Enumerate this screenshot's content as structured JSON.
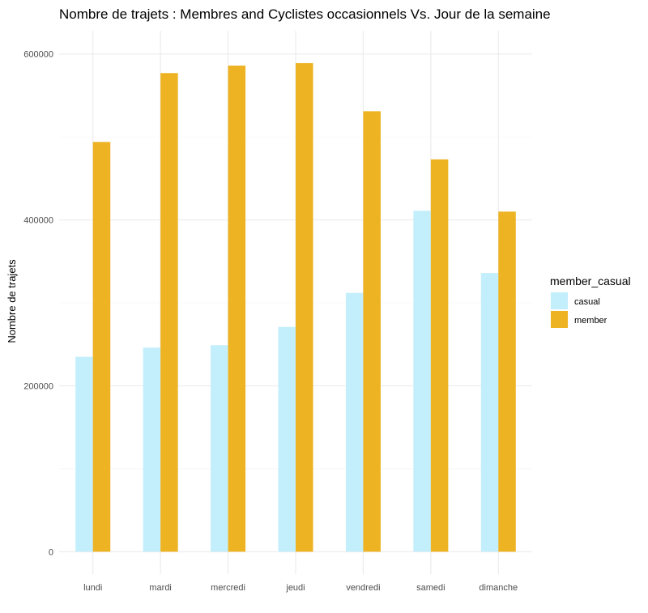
{
  "chart_data": {
    "type": "bar",
    "title": "Nombre de trajets : Membres and Cyclistes occasionnels Vs. Jour de la semaine",
    "xlabel": "",
    "ylabel": "Nombre de trajets",
    "categories": [
      "lundi",
      "mardi",
      "mercredi",
      "jeudi",
      "vendredi",
      "samedi",
      "dimanche"
    ],
    "series": [
      {
        "name": "casual",
        "color": "#c3eefb",
        "values": [
          235000,
          246000,
          249000,
          271000,
          312000,
          411000,
          336000
        ]
      },
      {
        "name": "member",
        "color": "#edb323",
        "values": [
          494000,
          577000,
          586000,
          589000,
          531000,
          473000,
          410000
        ]
      }
    ],
    "ylim": [
      -27000,
      628000
    ],
    "yticks": [
      0,
      200000,
      400000,
      600000
    ],
    "ytick_labels": [
      "0",
      "200000",
      "400000",
      "600000"
    ],
    "grid": true,
    "legend": {
      "title": "member_casual",
      "position": "right"
    }
  }
}
